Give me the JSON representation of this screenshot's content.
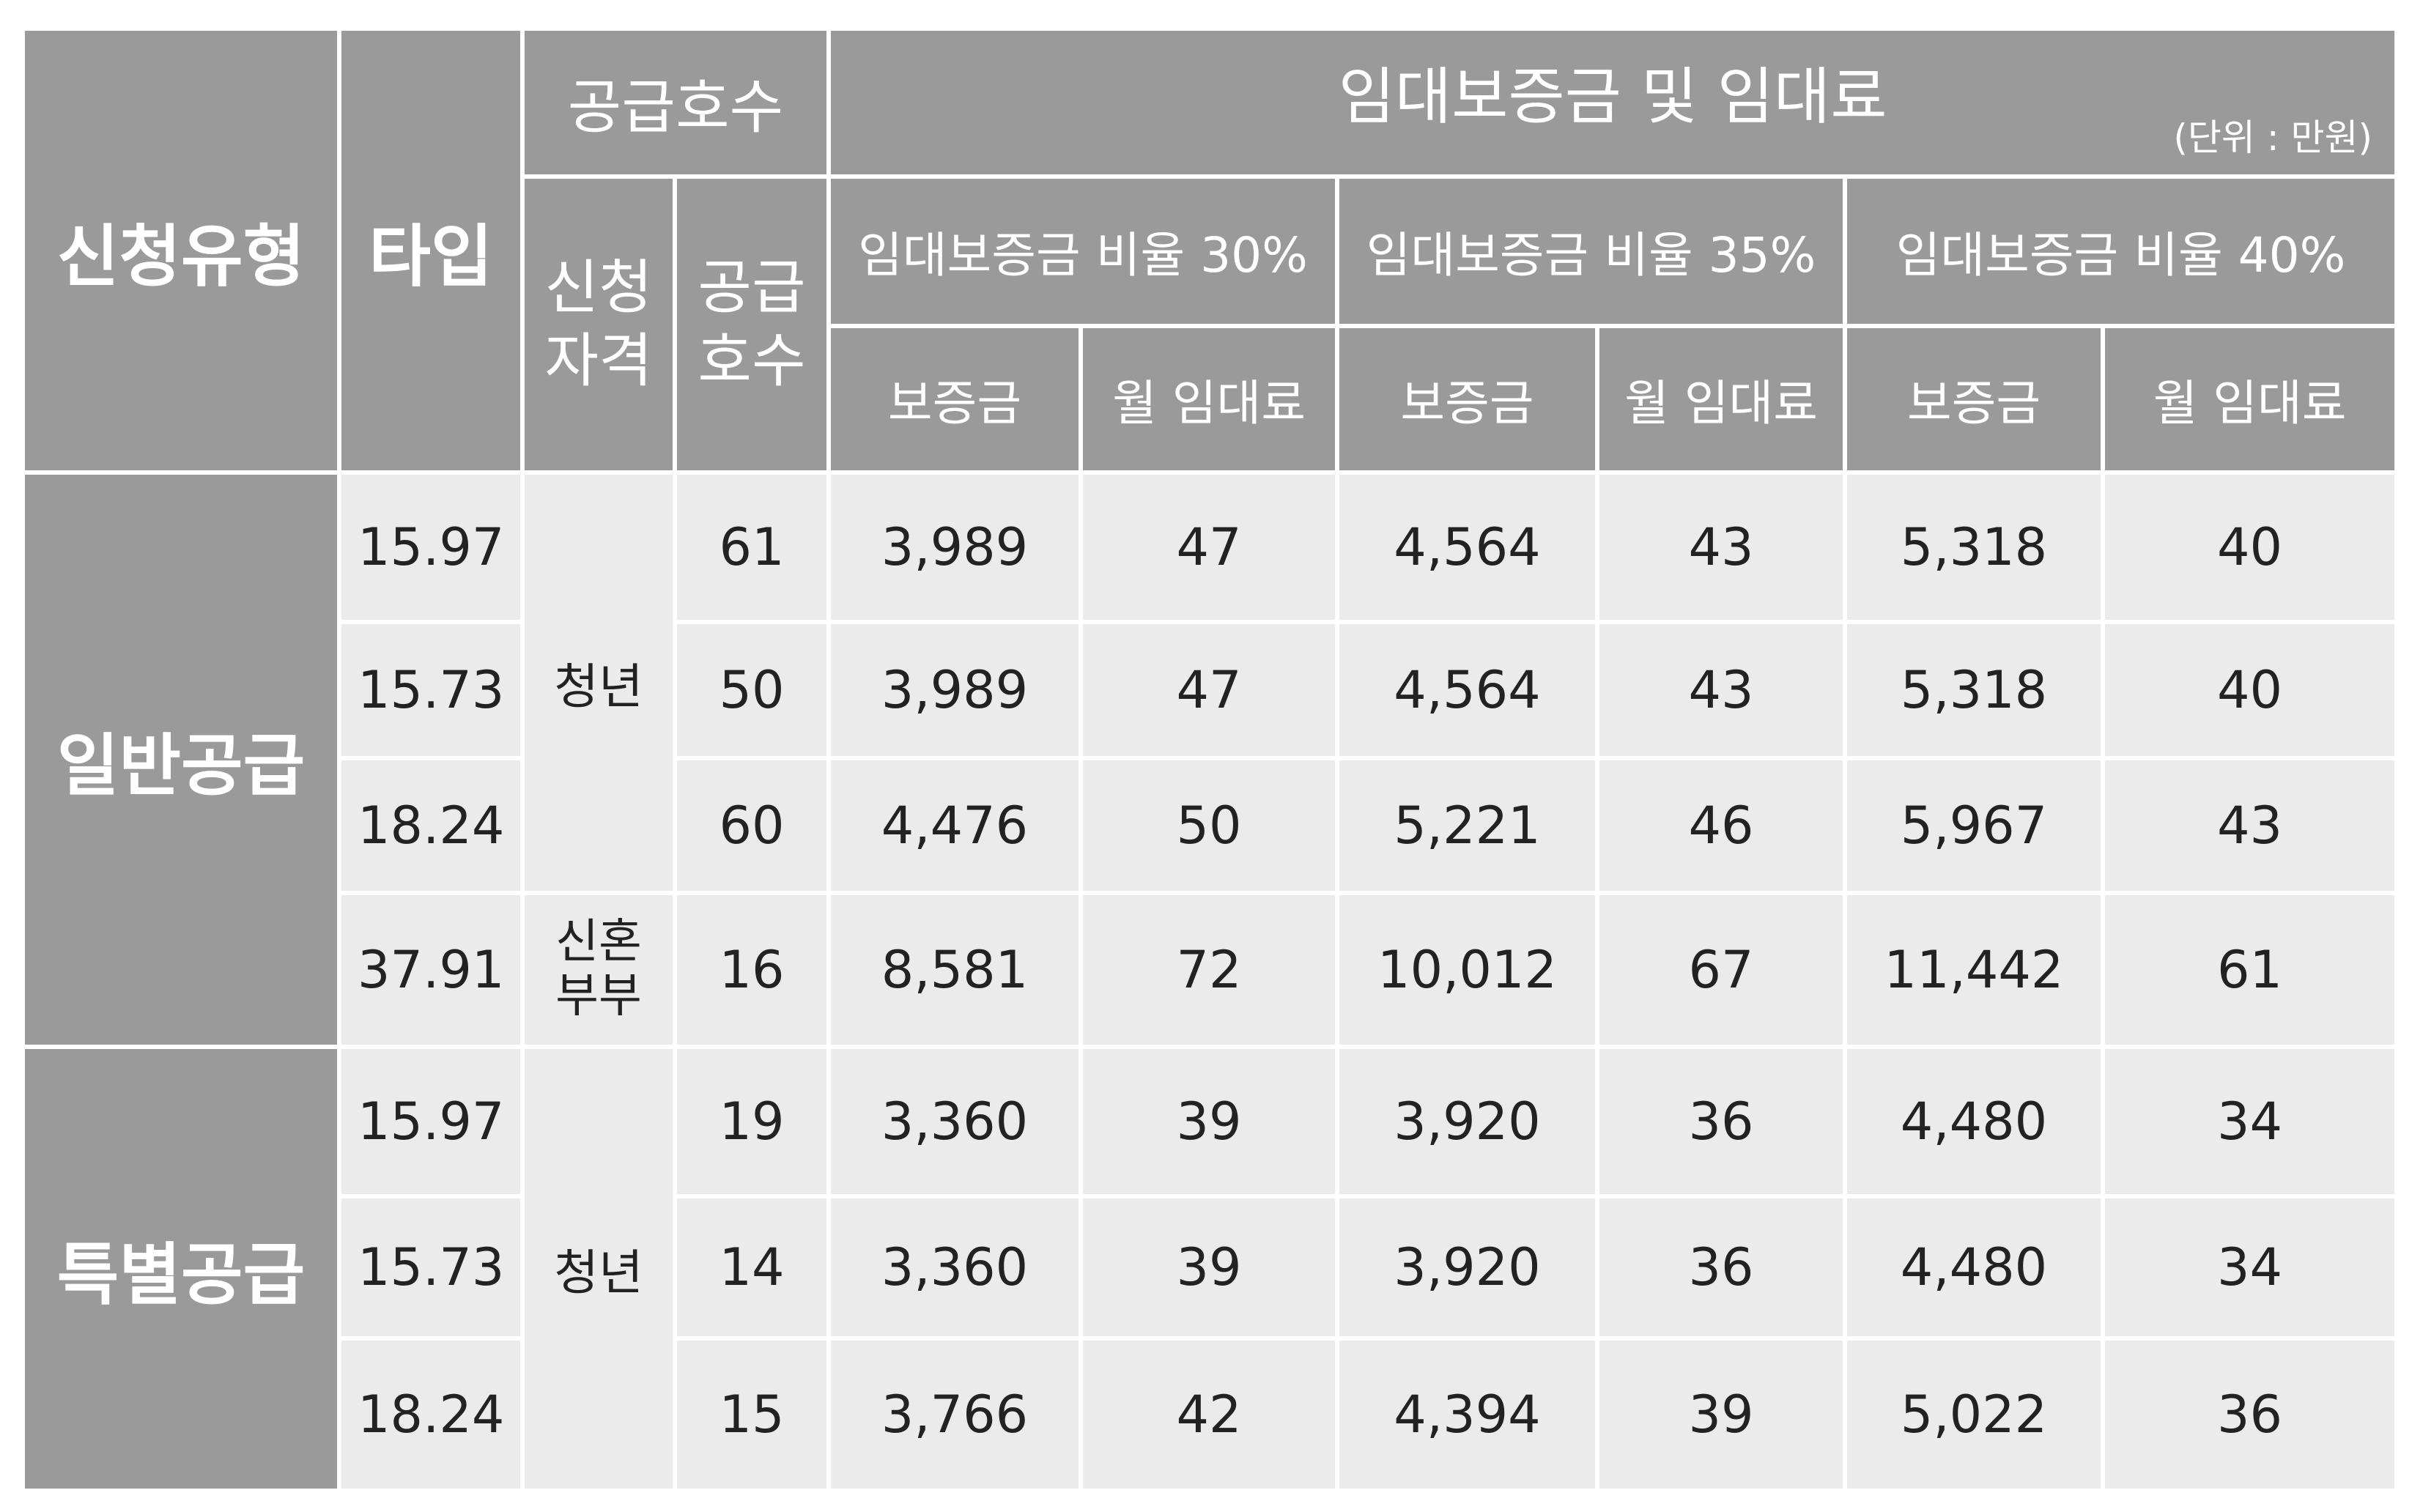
{
  "header": {
    "col_category": "신청유형",
    "col_type": "타입",
    "supply_group": "공급호수",
    "qualification": [
      "신청",
      "자격"
    ],
    "supply_count": [
      "공급",
      "호수"
    ],
    "rent_group": "임대보증금 및 임대료",
    "unit": "(단위 : 만원)",
    "ratio_30": "임대보증금 비율 30%",
    "ratio_35": "임대보증금 비율 35%",
    "ratio_40": "임대보증금 비율 40%",
    "deposit": "보증금",
    "monthly_rent": "월 임대료"
  },
  "categories": {
    "general": "일반공급",
    "special": "특별공급"
  },
  "qualifications": {
    "youth": "청년",
    "newlywed": [
      "신혼",
      "부부"
    ]
  },
  "rows": [
    {
      "type": "15.97",
      "count": "61",
      "d30": "3,989",
      "r30": "47",
      "d35": "4,564",
      "r35": "43",
      "d40": "5,318",
      "r40": "40"
    },
    {
      "type": "15.73",
      "count": "50",
      "d30": "3,989",
      "r30": "47",
      "d35": "4,564",
      "r35": "43",
      "d40": "5,318",
      "r40": "40"
    },
    {
      "type": "18.24",
      "count": "60",
      "d30": "4,476",
      "r30": "50",
      "d35": "5,221",
      "r35": "46",
      "d40": "5,967",
      "r40": "43"
    },
    {
      "type": "37.91",
      "count": "16",
      "d30": "8,581",
      "r30": "72",
      "d35": "10,012",
      "r35": "67",
      "d40": "11,442",
      "r40": "61"
    },
    {
      "type": "15.97",
      "count": "19",
      "d30": "3,360",
      "r30": "39",
      "d35": "3,920",
      "r35": "36",
      "d40": "4,480",
      "r40": "34"
    },
    {
      "type": "15.73",
      "count": "14",
      "d30": "3,360",
      "r30": "39",
      "d35": "3,920",
      "r35": "36",
      "d40": "4,480",
      "r40": "34"
    },
    {
      "type": "18.24",
      "count": "15",
      "d30": "3,766",
      "r30": "42",
      "d35": "4,394",
      "r35": "39",
      "d40": "5,022",
      "r40": "36"
    }
  ],
  "colors": {
    "header_bg": "#9a9a9a",
    "cell_bg": "#ecebeb",
    "border": "#ffffff",
    "text_dark": "#222222",
    "text_light": "#ffffff"
  }
}
